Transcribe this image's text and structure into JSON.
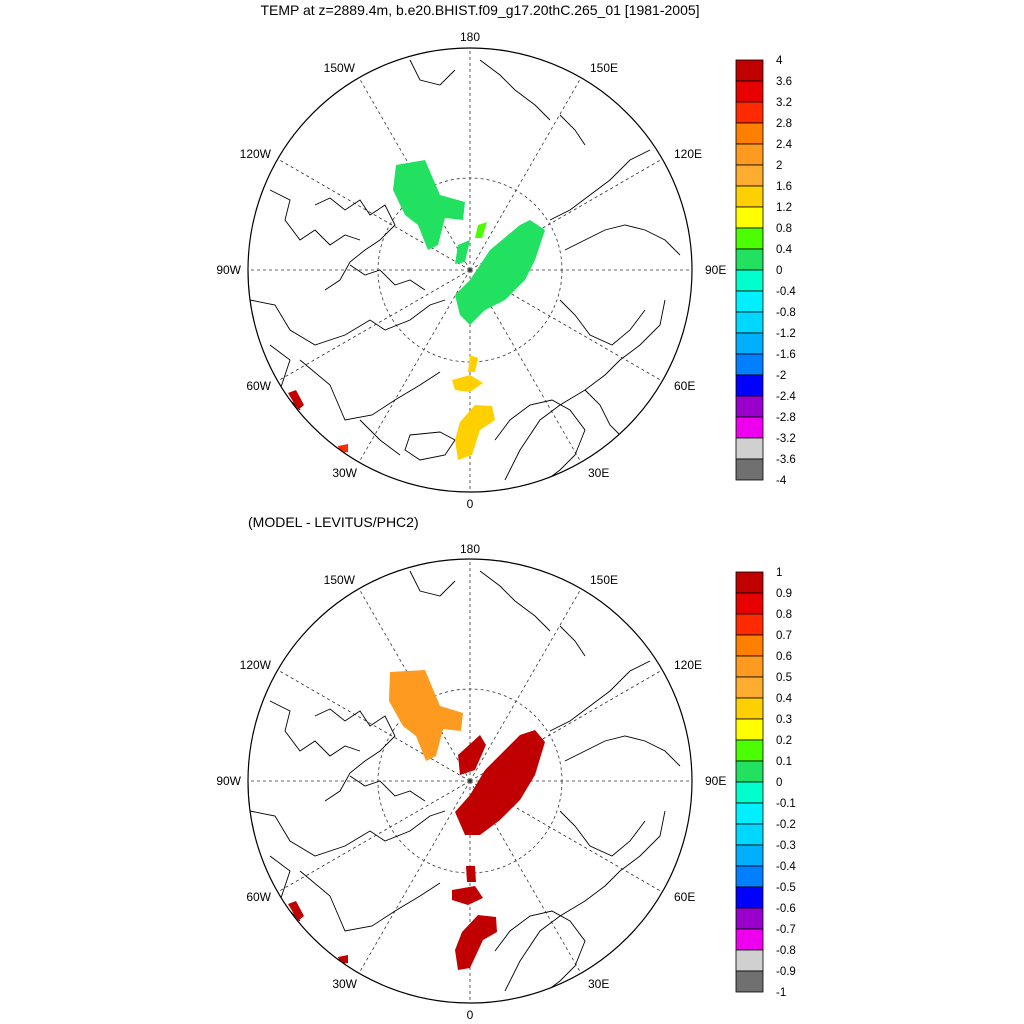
{
  "title": "TEMP at z=2889.4m, b.e20.BHIST.f09_g17.20thC.265_01 [1981-2005]",
  "diff_title": "(MODEL - LEVITUS/PHC2)",
  "lon_labels": {
    "top": "180",
    "bottom": "0",
    "left_90": "90W",
    "right_90": "90E",
    "w150": "150W",
    "e150": "150E",
    "w120": "120W",
    "e120": "120E",
    "w60": "60W",
    "e60": "60E",
    "w30": "30W",
    "e30": "30E"
  },
  "colorbar1": {
    "labels": [
      "4",
      "3.6",
      "3.2",
      "2.8",
      "2.4",
      "2",
      "1.6",
      "1.2",
      "0.8",
      "0.4",
      "0",
      "-0.4",
      "-0.8",
      "-1.2",
      "-1.6",
      "-2",
      "-2.4",
      "-2.8",
      "-3.2",
      "-3.6",
      "-4"
    ],
    "colors": [
      "#c00000",
      "#e60000",
      "#ff2a00",
      "#ff8000",
      "#ff9a20",
      "#ffad30",
      "#ffd000",
      "#ffff00",
      "#4cff00",
      "#22e060",
      "#00ffcc",
      "#00f0ff",
      "#00d8ff",
      "#00b0ff",
      "#0080ff",
      "#0000ff",
      "#9900cc",
      "#ee00ee",
      "#d0d0d0",
      "#707070"
    ]
  },
  "colorbar2": {
    "labels": [
      "1",
      "0.9",
      "0.8",
      "0.7",
      "0.6",
      "0.5",
      "0.4",
      "0.3",
      "0.2",
      "0.1",
      "0",
      "-0.1",
      "-0.2",
      "-0.3",
      "-0.4",
      "-0.5",
      "-0.6",
      "-0.7",
      "-0.8",
      "-0.9",
      "-1"
    ],
    "colors": [
      "#c00000",
      "#e60000",
      "#ff2a00",
      "#ff8000",
      "#ff9a20",
      "#ffad30",
      "#ffd000",
      "#ffff00",
      "#4cff00",
      "#22e060",
      "#00ffcc",
      "#00f0ff",
      "#00d8ff",
      "#00b0ff",
      "#0080ff",
      "#0000ff",
      "#9900cc",
      "#ee00ee",
      "#d0d0d0",
      "#707070"
    ]
  }
}
